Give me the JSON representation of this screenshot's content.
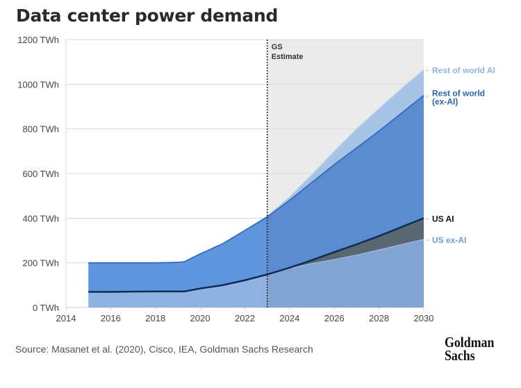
{
  "title": "Data center power demand",
  "source": "Source: Masanet et al. (2020), Cisco, IEA, Goldman Sachs Research",
  "logo": {
    "line1": "Goldman",
    "line2": "Sachs"
  },
  "estimate_label": {
    "line1": "GS",
    "line2": "Estimate"
  },
  "colors": {
    "us_ex_ai_2015": "#8fb2e3",
    "us_ex_ai_proj": "#82a4d3",
    "us_ai": "#5b6673",
    "us_ai_line": "#0d2c54",
    "row_ex_ai": "#5f96de",
    "row_ex_ai_proj": "#5a8ccf",
    "row_ai": "#a6c3e6",
    "estimate_bg": "#ebebeb",
    "label_row_ai": "#8db4e2",
    "label_row_ex_ai": "#2c62b0",
    "label_us_ai": "#111111",
    "label_us_ex_ai": "#6f9bd6"
  },
  "chart_data": {
    "type": "area",
    "stacked": true,
    "title": "Data center power demand",
    "xlabel": "",
    "ylabel": "",
    "xlim": [
      2014,
      2030
    ],
    "ylim": [
      0,
      1200
    ],
    "x_ticks": [
      "2014",
      "2016",
      "2018",
      "2020",
      "2022",
      "2024",
      "2026",
      "2028",
      "2030"
    ],
    "y_ticks": [
      "0 TWh",
      "200 TWh",
      "400 TWh",
      "600 TWh",
      "800 TWh",
      "1000 TWh",
      "1200 TWh"
    ],
    "grid": true,
    "estimate_start": 2023,
    "estimate_label": "GS Estimate",
    "x": [
      2015,
      2016,
      2017,
      2018,
      2019,
      2019.3,
      2020,
      2021,
      2022,
      2023,
      2024,
      2025,
      2026,
      2027,
      2028,
      2029,
      2030
    ],
    "cumulative": {
      "us_ex_ai": [
        70,
        70,
        71,
        72,
        72,
        72,
        85,
        100,
        122,
        148,
        175,
        197,
        215,
        235,
        258,
        282,
        305
      ],
      "us_total": [
        70,
        70,
        71,
        72,
        72,
        72,
        85,
        100,
        122,
        148,
        178,
        212,
        248,
        283,
        320,
        360,
        400
      ],
      "row_ex_ai_top": [
        200,
        200,
        200,
        200,
        202,
        205,
        240,
        285,
        345,
        405,
        480,
        560,
        640,
        715,
        790,
        870,
        950
      ],
      "row_ai_top": [
        200,
        200,
        200,
        200,
        202,
        205,
        240,
        285,
        345,
        410,
        495,
        595,
        700,
        800,
        890,
        980,
        1065
      ]
    },
    "series": [
      {
        "name": "US ex-AI",
        "values": [
          70,
          70,
          71,
          72,
          72,
          72,
          85,
          100,
          122,
          148,
          175,
          197,
          215,
          235,
          258,
          282,
          305
        ]
      },
      {
        "name": "US AI",
        "values": [
          0,
          0,
          0,
          0,
          0,
          0,
          0,
          0,
          0,
          0,
          3,
          15,
          33,
          48,
          62,
          78,
          95
        ]
      },
      {
        "name": "Rest of world (ex-AI)",
        "values": [
          130,
          130,
          129,
          128,
          130,
          133,
          155,
          185,
          223,
          257,
          302,
          348,
          392,
          432,
          470,
          510,
          550
        ]
      },
      {
        "name": "Rest of world AI",
        "values": [
          0,
          0,
          0,
          0,
          0,
          0,
          0,
          0,
          0,
          5,
          15,
          35,
          60,
          85,
          100,
          110,
          115
        ]
      }
    ],
    "legend": [
      {
        "name": "Rest of world AI",
        "end_value": 1065
      },
      {
        "name": "Rest of world (ex-AI)",
        "line1": "Rest of world",
        "line2": "(ex-AI)",
        "end_value": 950
      },
      {
        "name": "US AI",
        "end_value": 400
      },
      {
        "name": "US ex-AI",
        "end_value": 305
      }
    ],
    "legend_placement": "right (direct labels at series ends)"
  }
}
